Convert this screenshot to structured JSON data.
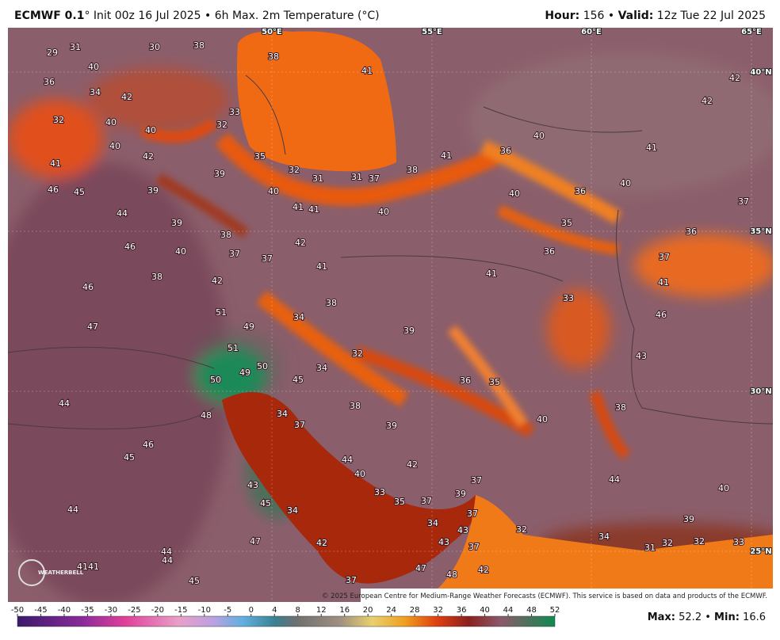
{
  "header": {
    "model": "ECMWF 0.1",
    "description": "° Init 00z 16 Jul 2025 • 6h Max. 2m Temperature (°C)",
    "hour_label": "Hour:",
    "hour": "156",
    "separator": "•",
    "valid_label": "Valid:",
    "valid": "12z Tue 22 Jul 2025"
  },
  "map": {
    "longitudes": [
      "50°E",
      "55°E",
      "60°E",
      "65°E"
    ],
    "latitudes": [
      "40°N",
      "35°N",
      "30°N",
      "25°N"
    ],
    "labels": [
      29,
      31,
      30,
      38,
      38,
      36,
      34,
      42,
      40,
      33,
      32,
      40,
      32,
      40,
      40,
      42,
      35,
      41,
      32,
      31,
      31,
      37,
      38,
      41,
      36,
      40,
      41,
      42,
      42,
      41,
      39,
      46,
      45,
      39,
      40,
      41,
      41,
      40,
      40,
      36,
      40,
      37,
      44,
      39,
      38,
      42,
      35,
      36,
      46,
      40,
      37,
      37,
      36,
      37,
      41,
      41,
      38,
      42,
      41,
      46,
      33,
      38,
      51,
      34,
      46,
      47,
      49,
      39,
      51,
      32,
      43,
      49,
      50,
      34,
      36,
      35,
      50,
      45,
      44,
      38,
      38,
      48,
      34,
      40,
      37,
      39,
      46,
      45,
      44,
      42,
      40,
      37,
      44,
      43,
      40,
      33,
      35,
      37,
      39,
      45,
      44,
      34,
      37,
      39,
      34,
      32,
      43,
      47,
      42,
      43,
      34,
      31,
      32,
      32,
      33,
      37,
      44,
      44,
      41,
      41,
      47,
      48,
      42,
      45,
      37
    ],
    "copyright": "© 2025 European Centre for Medium-Range Weather Forecasts (ECMWF). This service is based on data and products of the ECMWF.",
    "logo": "WEATHERBELL"
  },
  "colorbar": {
    "ticks": [
      -50,
      -45,
      -40,
      -35,
      -30,
      -25,
      -20,
      -15,
      -10,
      -5,
      0,
      4,
      8,
      12,
      16,
      20,
      24,
      28,
      32,
      36,
      40,
      44,
      48,
      52
    ]
  },
  "footer": {
    "max_label": "Max:",
    "max": "52.2",
    "separator": "•",
    "min_label": "Min:",
    "min": "16.6"
  }
}
